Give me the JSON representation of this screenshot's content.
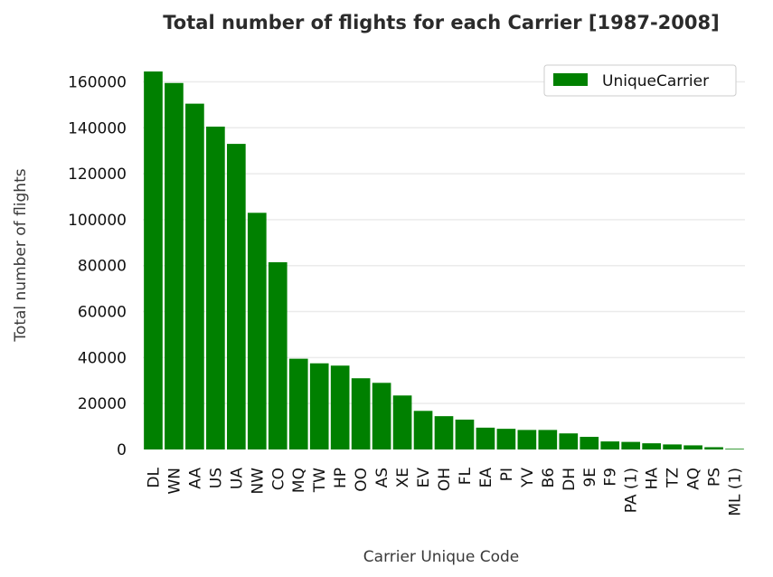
{
  "chart_data": {
    "type": "bar",
    "title": "Total number of flights for each Carrier [1987-2008]",
    "xlabel": "Carrier Unique Code",
    "ylabel": "Total number of flights",
    "categories": [
      "DL",
      "WN",
      "AA",
      "US",
      "UA",
      "NW",
      "CO",
      "MQ",
      "TW",
      "HP",
      "OO",
      "AS",
      "XE",
      "EV",
      "OH",
      "FL",
      "EA",
      "PI",
      "YV",
      "B6",
      "DH",
      "9E",
      "F9",
      "PA (1)",
      "HA",
      "TZ",
      "AQ",
      "PS",
      "ML (1)"
    ],
    "series": [
      {
        "name": "UniqueCarrier",
        "color": "#008000",
        "values": [
          164500,
          159500,
          150500,
          140500,
          133000,
          103000,
          81500,
          39500,
          37500,
          36500,
          31000,
          29000,
          23500,
          16800,
          14500,
          13000,
          9500,
          9000,
          8500,
          8500,
          7000,
          5500,
          3500,
          3300,
          2700,
          2200,
          1800,
          1000,
          300
        ]
      }
    ],
    "yticks": [
      0,
      20000,
      40000,
      60000,
      80000,
      100000,
      120000,
      140000,
      160000
    ],
    "ylim": [
      0,
      172000
    ],
    "grid": true,
    "legend_position": "top-right"
  }
}
